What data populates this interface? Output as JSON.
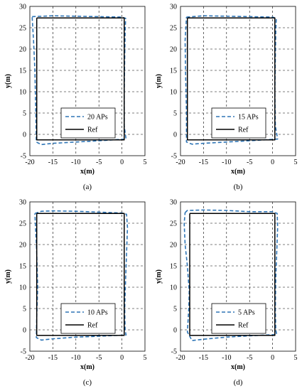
{
  "chart_data": [
    {
      "type": "line",
      "caption": "(a)",
      "xlabel": "x(m)",
      "ylabel": "y(m)",
      "xlim": [
        -20,
        5
      ],
      "ylim": [
        -5,
        30
      ],
      "xticks": [
        -20,
        -15,
        -10,
        -5,
        0,
        5
      ],
      "yticks": [
        -5,
        0,
        5,
        10,
        15,
        20,
        25,
        30
      ],
      "grid": true,
      "legend_position": "lower-center",
      "series": [
        {
          "name": "20 APs",
          "color": "#2e75b6",
          "dash": true,
          "points": [
            [
              -19.5,
              27.6
            ],
            [
              -15,
              27.8
            ],
            [
              -10,
              27.7
            ],
            [
              -5,
              27.6
            ],
            [
              0,
              27.5
            ],
            [
              0.8,
              27.2
            ],
            [
              0.7,
              24
            ],
            [
              0.6,
              18
            ],
            [
              0.5,
              10
            ],
            [
              0.5,
              2
            ],
            [
              0.9,
              -1.1
            ],
            [
              -5,
              -1.5
            ],
            [
              -10,
              -1.8
            ],
            [
              -15,
              -2.1
            ],
            [
              -17.5,
              -2.4
            ],
            [
              -18.6,
              -1.8
            ],
            [
              -18.7,
              5
            ],
            [
              -18.9,
              15
            ],
            [
              -19.2,
              22
            ],
            [
              -19.5,
              27.6
            ]
          ]
        },
        {
          "name": "Ref",
          "color": "#000000",
          "dash": false,
          "points": [
            [
              -18.5,
              27.3
            ],
            [
              0.5,
              27.3
            ],
            [
              0.5,
              -1.3
            ],
            [
              -18.5,
              -1.3
            ],
            [
              -18.5,
              27.3
            ]
          ]
        }
      ]
    },
    {
      "type": "line",
      "caption": "(b)",
      "xlabel": "x(m)",
      "ylabel": "y(m)",
      "xlim": [
        -20,
        5
      ],
      "ylim": [
        -5,
        30
      ],
      "xticks": [
        -20,
        -15,
        -10,
        -5,
        0,
        5
      ],
      "yticks": [
        -5,
        0,
        5,
        10,
        15,
        20,
        25,
        30
      ],
      "grid": true,
      "legend_position": "lower-center",
      "series": [
        {
          "name": "15 APs",
          "color": "#2e75b6",
          "dash": true,
          "points": [
            [
              -18.7,
              27.5
            ],
            [
              -15,
              27.8
            ],
            [
              -10,
              27.7
            ],
            [
              -5,
              27.6
            ],
            [
              0,
              27.5
            ],
            [
              0.8,
              27.2
            ],
            [
              0.7,
              24
            ],
            [
              0.6,
              18
            ],
            [
              0.5,
              10
            ],
            [
              0.6,
              2
            ],
            [
              1.1,
              -1.1
            ],
            [
              -5,
              -1.5
            ],
            [
              -10,
              -1.8
            ],
            [
              -15,
              -2.1
            ],
            [
              -17.5,
              -2.3
            ],
            [
              -18.7,
              -1.8
            ],
            [
              -18.7,
              5
            ],
            [
              -18.9,
              15
            ],
            [
              -19,
              22
            ],
            [
              -18.7,
              27.5
            ]
          ]
        },
        {
          "name": "Ref",
          "color": "#000000",
          "dash": false,
          "points": [
            [
              -18.5,
              27.3
            ],
            [
              0.5,
              27.3
            ],
            [
              0.5,
              -1.3
            ],
            [
              -18.5,
              -1.3
            ],
            [
              -18.5,
              27.3
            ]
          ]
        }
      ]
    },
    {
      "type": "line",
      "caption": "(c)",
      "xlabel": "x(m)",
      "ylabel": "y(m)",
      "xlim": [
        -20,
        5
      ],
      "ylim": [
        -5,
        30
      ],
      "xticks": [
        -20,
        -15,
        -10,
        -5,
        0,
        5
      ],
      "yticks": [
        -5,
        0,
        5,
        10,
        15,
        20,
        25,
        30
      ],
      "grid": true,
      "legend_position": "lower-center",
      "series": [
        {
          "name": "10 APs",
          "color": "#2e75b6",
          "dash": true,
          "points": [
            [
              -18.9,
              27.3
            ],
            [
              -17.5,
              27.8
            ],
            [
              -15,
              27.9
            ],
            [
              -10,
              27.8
            ],
            [
              -5,
              27.6
            ],
            [
              0,
              27.4
            ],
            [
              1,
              27.1
            ],
            [
              1.2,
              24
            ],
            [
              1,
              18
            ],
            [
              0.8,
              12
            ],
            [
              0.6,
              5
            ],
            [
              0.7,
              0
            ],
            [
              0.9,
              -1.2
            ],
            [
              -5,
              -1.5
            ],
            [
              -10,
              -1.7
            ],
            [
              -15,
              -2.1
            ],
            [
              -17.5,
              -2.4
            ],
            [
              -18.6,
              -1.8
            ],
            [
              -18.5,
              3
            ],
            [
              -18.3,
              10
            ],
            [
              -18.5,
              18
            ],
            [
              -18.9,
              27.3
            ]
          ]
        },
        {
          "name": "Ref",
          "color": "#000000",
          "dash": false,
          "points": [
            [
              -18.5,
              27.3
            ],
            [
              0.5,
              27.3
            ],
            [
              0.5,
              -1.3
            ],
            [
              -18.5,
              -1.3
            ],
            [
              -18.5,
              27.3
            ]
          ]
        }
      ]
    },
    {
      "type": "line",
      "caption": "(d)",
      "xlabel": "x(m)",
      "ylabel": "y(m)",
      "xlim": [
        -20,
        5
      ],
      "ylim": [
        -5,
        30
      ],
      "xticks": [
        -20,
        -15,
        -10,
        -5,
        0,
        5
      ],
      "yticks": [
        -5,
        0,
        5,
        10,
        15,
        20,
        25,
        30
      ],
      "grid": true,
      "legend_position": "lower-center",
      "series": [
        {
          "name": "5 APs",
          "color": "#2e75b6",
          "dash": true,
          "points": [
            [
              -19,
              27.5
            ],
            [
              -18.5,
              28
            ],
            [
              -15,
              28.1
            ],
            [
              -10,
              28
            ],
            [
              -5,
              27.7
            ],
            [
              0,
              27.7
            ],
            [
              1,
              27.3
            ],
            [
              1.1,
              24
            ],
            [
              0.9,
              18
            ],
            [
              0.7,
              12
            ],
            [
              0.6,
              5
            ],
            [
              0.7,
              0
            ],
            [
              0.9,
              -1.1
            ],
            [
              -5,
              -1.4
            ],
            [
              -10,
              -1.7
            ],
            [
              -15,
              -2.2
            ],
            [
              -17.5,
              -2.5
            ],
            [
              -18.5,
              -0.5
            ],
            [
              -18.2,
              5
            ],
            [
              -18.1,
              9
            ],
            [
              -18.5,
              15
            ],
            [
              -19,
              20
            ],
            [
              -19.2,
              25
            ],
            [
              -19,
              27.5
            ]
          ]
        },
        {
          "name": "Ref",
          "color": "#000000",
          "dash": false,
          "points": [
            [
              -18,
              27.3
            ],
            [
              0.5,
              27.3
            ],
            [
              0.5,
              -1.3
            ],
            [
              -18,
              -1.3
            ],
            [
              -18,
              27.3
            ]
          ]
        }
      ]
    }
  ]
}
